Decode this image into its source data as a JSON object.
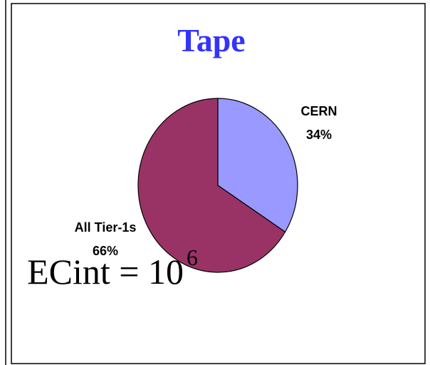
{
  "chart_data": {
    "type": "pie",
    "title": "Tape",
    "categories": [
      "CERN",
      "All Tier-1s"
    ],
    "values": [
      34,
      66
    ],
    "value_labels": [
      "34%",
      "66%"
    ],
    "colors": [
      "#9999ff",
      "#993366"
    ],
    "annotations": [
      {
        "text": "ECint = 10",
        "superscript": "6"
      }
    ]
  }
}
